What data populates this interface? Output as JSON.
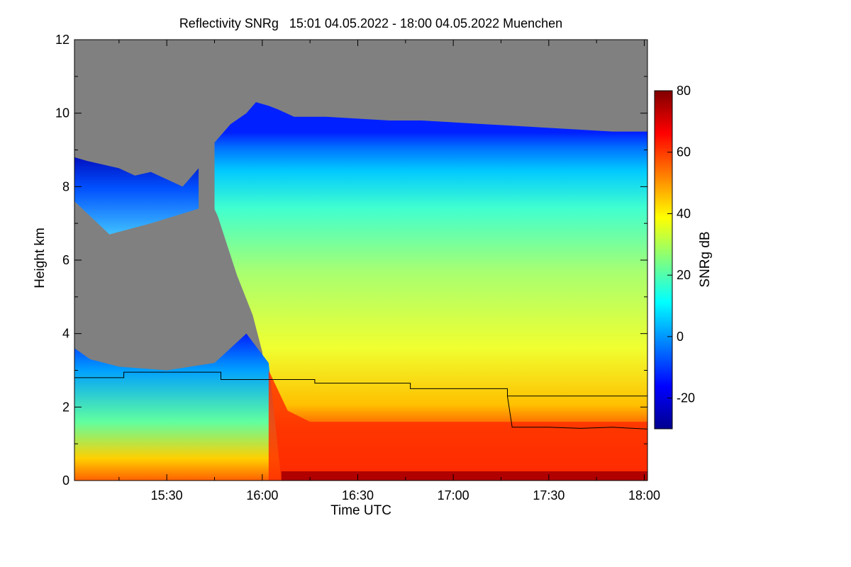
{
  "chart_data": {
    "type": "heatmap",
    "title": "Reflectivity SNRg   15:01 04.05.2022 - 18:00 04.05.2022 Muenchen",
    "xlabel": "Time UTC",
    "ylabel": "Height km",
    "colorbar_label": "SNRg dB",
    "x_range_minutes_utc": [
      901,
      1081
    ],
    "y_range_km": [
      0,
      12
    ],
    "x_ticks": [
      {
        "label": "15:30",
        "value": 930
      },
      {
        "label": "16:00",
        "value": 960
      },
      {
        "label": "16:30",
        "value": 990
      },
      {
        "label": "17:00",
        "value": 1020
      },
      {
        "label": "17:30",
        "value": 1050
      },
      {
        "label": "18:00",
        "value": 1080
      }
    ],
    "y_ticks": [
      {
        "label": "0",
        "value": 0
      },
      {
        "label": "2",
        "value": 2
      },
      {
        "label": "4",
        "value": 4
      },
      {
        "label": "6",
        "value": 6
      },
      {
        "label": "8",
        "value": 8
      },
      {
        "label": "10",
        "value": 10
      },
      {
        "label": "12",
        "value": 12
      }
    ],
    "colorbar": {
      "range_db": [
        -30,
        80
      ],
      "ticks": [
        {
          "label": "80",
          "value": 80
        },
        {
          "label": "60",
          "value": 60
        },
        {
          "label": "40",
          "value": 40
        },
        {
          "label": "20",
          "value": 20
        },
        {
          "label": "0",
          "value": 0
        },
        {
          "label": "-20",
          "value": -20
        }
      ],
      "colormap": "jet"
    },
    "no_signal_color": "#808080",
    "cloud_top_km": [
      [
        901,
        8.8
      ],
      [
        905,
        8.7
      ],
      [
        910,
        8.6
      ],
      [
        915,
        8.5
      ],
      [
        920,
        8.3
      ],
      [
        925,
        8.4
      ],
      [
        930,
        8.2
      ],
      [
        935,
        8.0
      ],
      [
        940,
        8.5
      ],
      [
        945,
        9.2
      ],
      [
        950,
        9.7
      ],
      [
        955,
        10.0
      ],
      [
        958,
        10.3
      ],
      [
        962,
        10.2
      ],
      [
        965,
        10.1
      ],
      [
        970,
        9.9
      ],
      [
        980,
        9.9
      ],
      [
        990,
        9.85
      ],
      [
        1000,
        9.8
      ],
      [
        1010,
        9.8
      ],
      [
        1020,
        9.75
      ],
      [
        1030,
        9.7
      ],
      [
        1040,
        9.65
      ],
      [
        1050,
        9.6
      ],
      [
        1060,
        9.55
      ],
      [
        1070,
        9.5
      ],
      [
        1081,
        9.5
      ]
    ],
    "series": [
      {
        "color": "#000000",
        "points": [
          [
            901,
            2.8
          ],
          [
            916.5,
            2.8
          ],
          [
            916.5,
            2.95
          ],
          [
            947,
            2.95
          ],
          [
            947,
            2.75
          ],
          [
            976.5,
            2.75
          ],
          [
            976.5,
            2.65
          ],
          [
            1006.5,
            2.65
          ],
          [
            1006.5,
            2.5
          ],
          [
            1037,
            2.5
          ],
          [
            1037,
            2.3
          ],
          [
            1081,
            2.3
          ]
        ]
      },
      {
        "color": "#000000",
        "points": [
          [
            1037,
            2.3
          ],
          [
            1038.5,
            1.45
          ],
          [
            1050,
            1.45
          ],
          [
            1060,
            1.42
          ],
          [
            1070,
            1.45
          ],
          [
            1081,
            1.4
          ]
        ]
      }
    ]
  }
}
